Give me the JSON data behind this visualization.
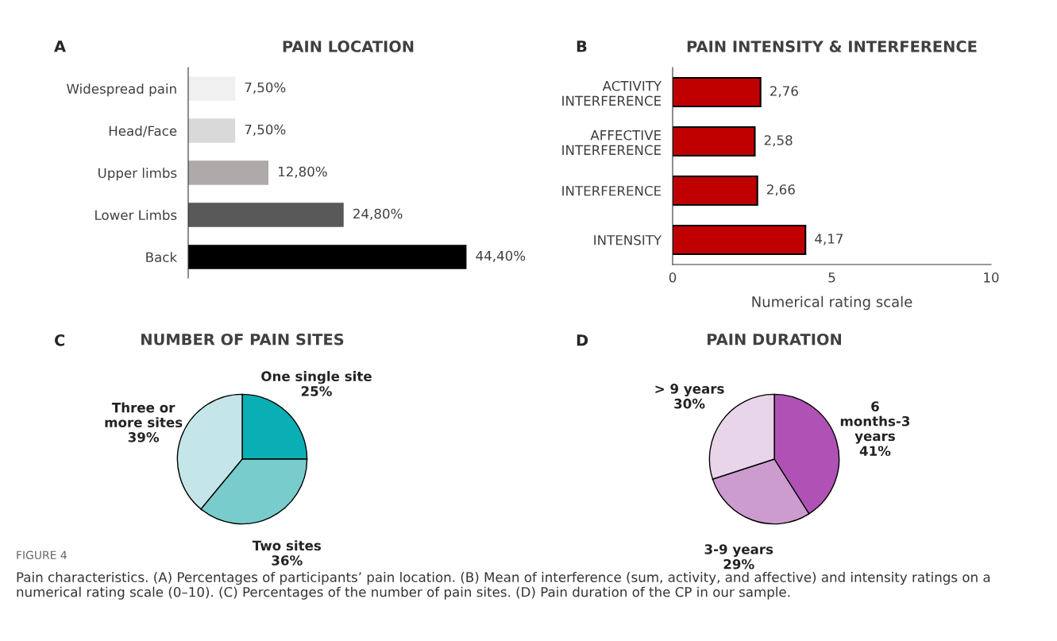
{
  "chart_data": [
    {
      "type": "bar",
      "orientation": "horizontal",
      "title": "PAIN LOCATION",
      "tick_labels": "y",
      "categories": [
        "Widespread pain",
        "Head/Face",
        "Upper limbs",
        "Lower Limbs",
        "Back"
      ],
      "values": [
        7.5,
        7.5,
        12.8,
        24.8,
        44.4
      ],
      "value_labels": [
        "7,50%",
        "7,50%",
        "12,80%",
        "24,80%",
        "44,40%"
      ],
      "colors": [
        "#f0f0f0",
        "#d9d9d9",
        "#aeaaaa",
        "#595959",
        "#000000"
      ],
      "annotations": [
        "A"
      ]
    },
    {
      "type": "bar",
      "orientation": "horizontal",
      "title": "PAIN INTENSITY & INTERFERENCE",
      "xlabel": "Numerical rating scale",
      "categories": [
        "ACTIVITY\nINTERFERENCE",
        "AFFECTIVE\nINTERFERENCE",
        "INTERFERENCE",
        "INTENSITY"
      ],
      "values": [
        2.76,
        2.58,
        2.66,
        4.17
      ],
      "value_labels": [
        "2,76",
        "2,58",
        "2,66",
        "4,17"
      ],
      "colors": [
        "#c00000",
        "#c00000",
        "#c00000",
        "#c00000"
      ],
      "xlim": [
        0,
        10
      ],
      "xticks": [
        0,
        5,
        10
      ],
      "annotations": [
        "B"
      ]
    },
    {
      "type": "pie",
      "title": "NUMBER OF PAIN SITES",
      "categories": [
        "One single site",
        "Two sites",
        "Three or\nmore sites"
      ],
      "values": [
        25,
        36,
        39
      ],
      "value_labels": [
        "25%",
        "36%",
        "39%"
      ],
      "colors": [
        "#0aafb5",
        "#79cccc",
        "#c4e6e8"
      ],
      "annotations": [
        "C"
      ]
    },
    {
      "type": "pie",
      "title": "PAIN DURATION",
      "categories": [
        "6\nmonths-3\nyears",
        "3-9 years",
        "> 9 years"
      ],
      "values": [
        41,
        29,
        30
      ],
      "value_labels": [
        "41%",
        "29%",
        "30%"
      ],
      "colors": [
        "#b052b5",
        "#cc9ccf",
        "#e8d5ea"
      ],
      "annotations": [
        "D",
        "FIGURE 4",
        "Pain characteristics. (A) Percentages of participants’ pain location. (B) Mean of interference (sum, activity, and affective) and intensity ratings on a numerical rating scale (0–10). (C) Percentages of the number of pain sites. (D) Pain duration of the CP in our sample."
      ]
    }
  ]
}
